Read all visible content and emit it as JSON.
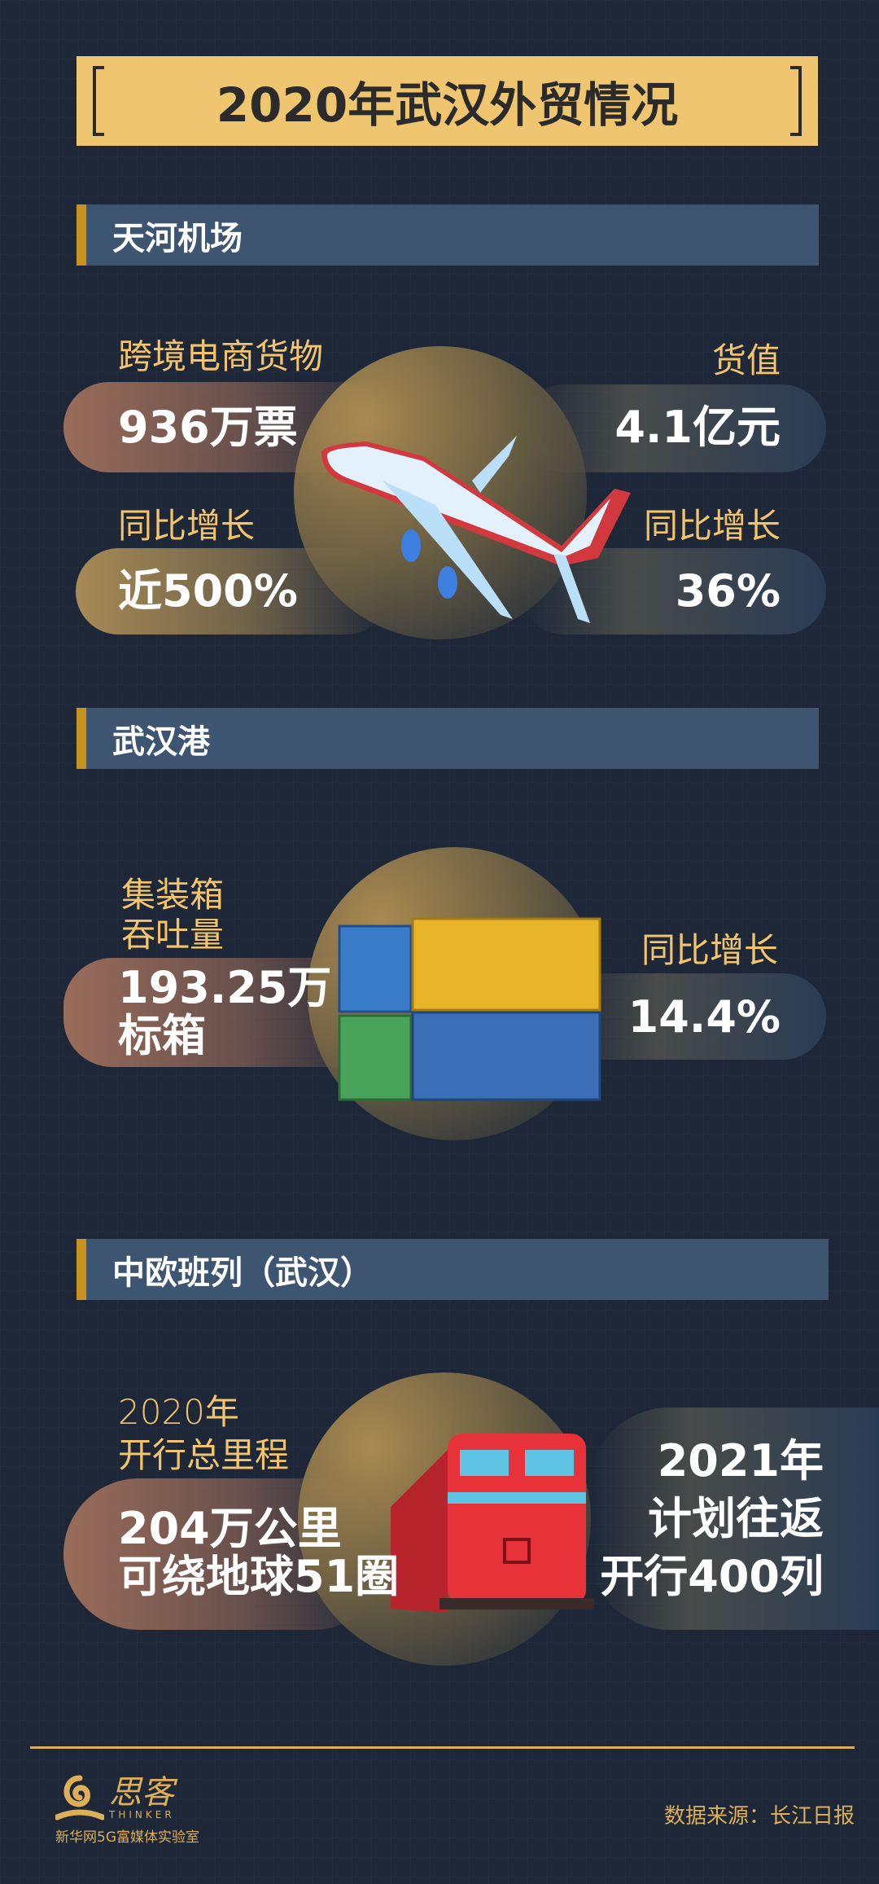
{
  "title": "2020年武汉外贸情况",
  "sections": [
    {
      "header": "天河机场",
      "left": [
        {
          "label": "跨境电商货物",
          "value": "936万票"
        },
        {
          "label": "同比增长",
          "value": "近500%"
        }
      ],
      "right": [
        {
          "label": "货值",
          "value": "4.1亿元"
        },
        {
          "label": "同比增长",
          "value": "36%"
        }
      ],
      "icon": "airplane-icon"
    },
    {
      "header": "武汉港",
      "left": {
        "label_line1": "集装箱",
        "label_line2": "吞吐量",
        "value_line1": "193.25万",
        "value_line2": "标箱"
      },
      "right": {
        "label": "同比增长",
        "value": "14.4%"
      },
      "icon": "shipping-containers-icon"
    },
    {
      "header": "中欧班列（武汉）",
      "left": {
        "label_line1": "2020年",
        "label_line2": "开行总里程",
        "value_line1": "204万公里",
        "value_line2": "可绕地球51圈"
      },
      "right": {
        "line1": "2021年",
        "line2": "计划往返",
        "line3": "开行400列"
      },
      "icon": "train-icon"
    }
  ],
  "footer": {
    "logo_text": "思客",
    "logo_sub": "THINKER",
    "org": "新华网5G富媒体实验室",
    "source": "数据来源：长江日报"
  },
  "colors": {
    "background": "#1d2738",
    "gold": "#f0c56f",
    "header": "#3e5571",
    "accent": "#c8921c"
  }
}
